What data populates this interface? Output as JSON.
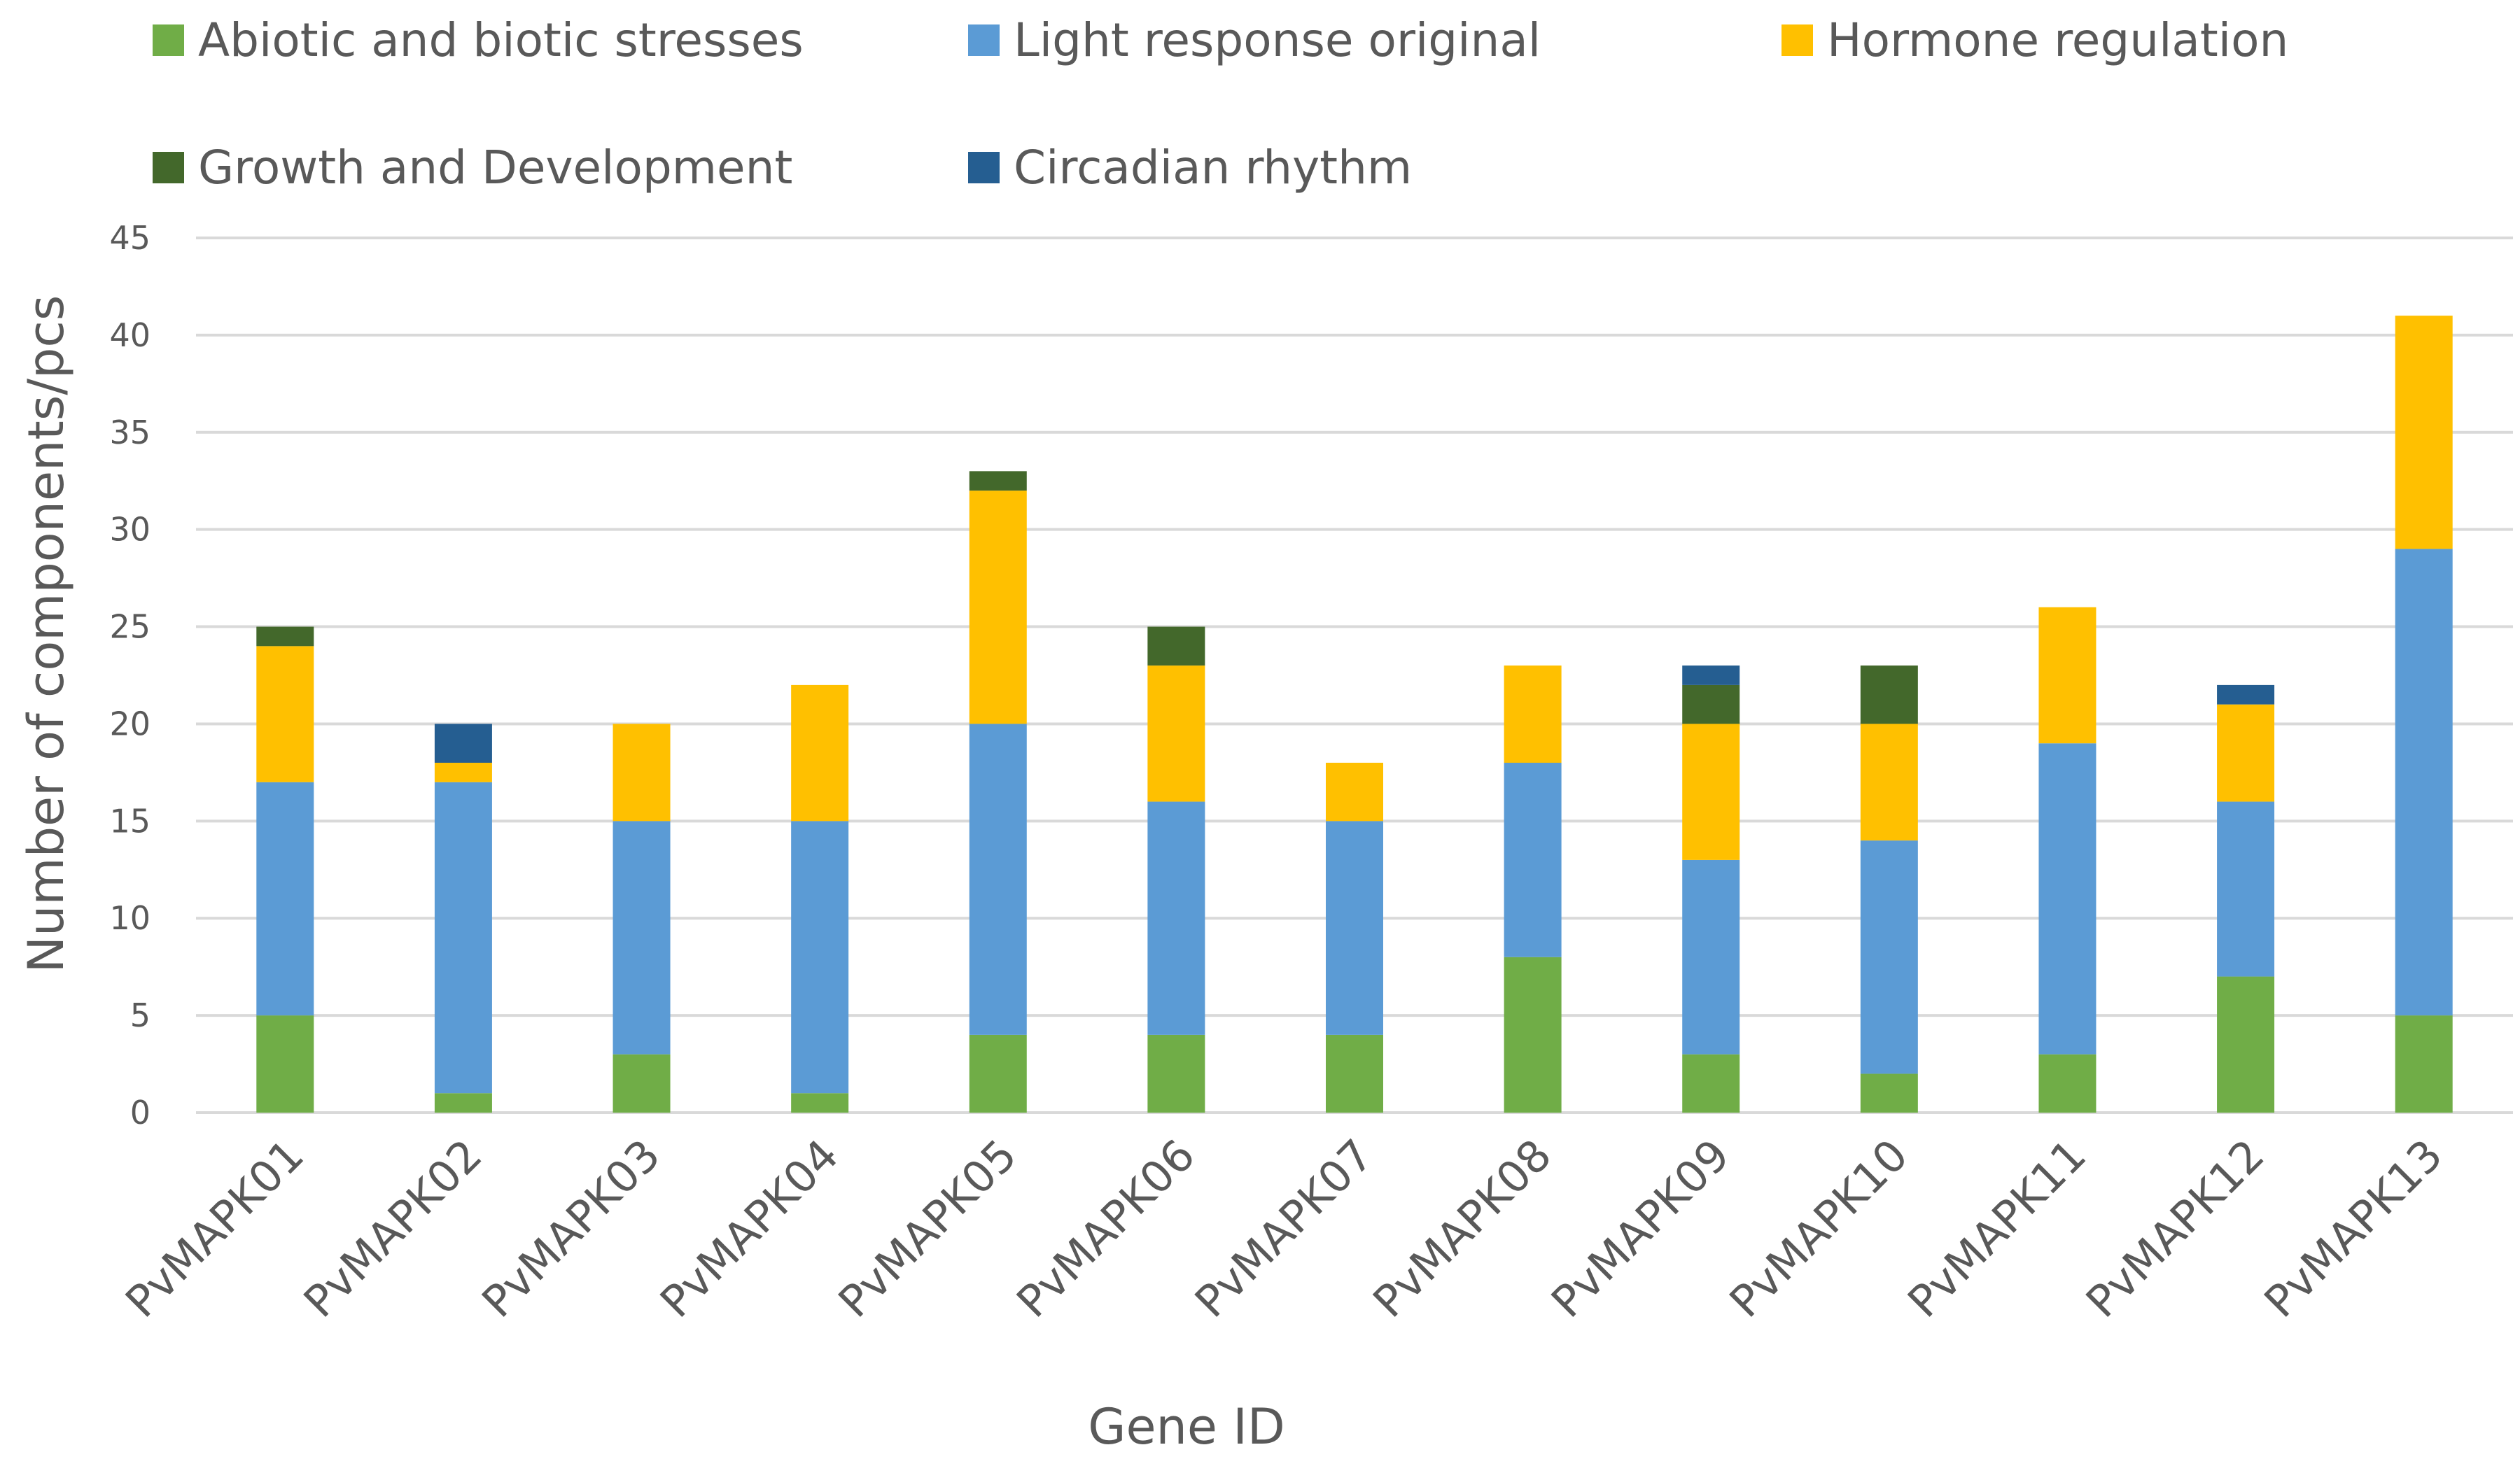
{
  "chart_data": {
    "type": "bar",
    "stacked": true,
    "title": "",
    "xlabel": "Gene ID",
    "ylabel": "Number of components/pcs",
    "ylim": [
      0,
      45
    ],
    "yticks": [
      0,
      5,
      10,
      15,
      20,
      25,
      30,
      35,
      40,
      45
    ],
    "grid": "horizontal",
    "legend_position": "top",
    "categories": [
      "PvMAPK01",
      "PvMAPK02",
      "PvMAPK03",
      "PvMAPK04",
      "PvMAPK05",
      "PvMAPK06",
      "PvMAPK07",
      "PvMAPK08",
      "PvMAPK09",
      "PvMAPK10",
      "PvMAPK11",
      "PvMAPK12",
      "PvMAPK13"
    ],
    "series": [
      {
        "name": "Abiotic and biotic stresses",
        "color": "#70AD47",
        "values": [
          5,
          1,
          3,
          1,
          4,
          4,
          4,
          8,
          3,
          2,
          3,
          7,
          5
        ]
      },
      {
        "name": "Light response original",
        "color": "#5B9BD5",
        "values": [
          12,
          16,
          12,
          14,
          16,
          12,
          11,
          10,
          10,
          12,
          16,
          9,
          24
        ]
      },
      {
        "name": "Hormone regulation",
        "color": "#FFC000",
        "values": [
          7,
          1,
          5,
          7,
          12,
          7,
          3,
          5,
          7,
          6,
          7,
          5,
          12
        ]
      },
      {
        "name": "Growth and Development",
        "color": "#43682B",
        "values": [
          1,
          0,
          0,
          0,
          1,
          2,
          0,
          0,
          2,
          3,
          0,
          0,
          0
        ]
      },
      {
        "name": "Circadian rhythm",
        "color": "#255E91",
        "values": [
          0,
          2,
          0,
          0,
          0,
          0,
          0,
          0,
          1,
          0,
          0,
          1,
          0
        ]
      }
    ]
  },
  "colors": {
    "text": "#595959",
    "grid": "#D9D9D9",
    "background": "#FFFFFF"
  }
}
